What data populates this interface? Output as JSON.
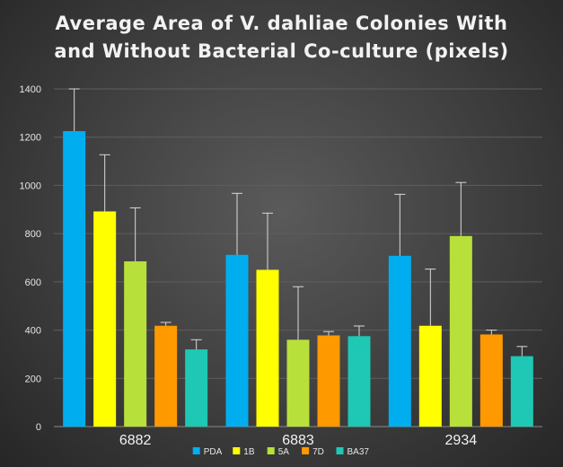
{
  "chart_data": {
    "type": "bar",
    "title_lines": [
      "Average Area of V. dahliae Colonies With",
      "and Without Bacterial Co-culture (pixels)"
    ],
    "categories": [
      "6882",
      "6883",
      "2934"
    ],
    "series": [
      {
        "name": "PDA",
        "color": "#00aeef",
        "values": [
          1225,
          712,
          708
        ],
        "error": [
          175,
          255,
          255
        ]
      },
      {
        "name": "1B",
        "color": "#ffff00",
        "values": [
          892,
          650,
          418
        ],
        "error": [
          235,
          235,
          235
        ]
      },
      {
        "name": "5A",
        "color": "#b8e03a",
        "values": [
          685,
          360,
          790
        ],
        "error": [
          222,
          220,
          222
        ]
      },
      {
        "name": "7D",
        "color": "#ff9900",
        "values": [
          418,
          378,
          382
        ],
        "error": [
          14,
          16,
          18
        ]
      },
      {
        "name": "BA37",
        "color": "#1ec8b4",
        "values": [
          320,
          375,
          292
        ],
        "error": [
          40,
          42,
          40
        ]
      }
    ],
    "yticks": [
      0,
      200,
      400,
      600,
      800,
      1000,
      1200,
      1400
    ],
    "ylim": [
      0,
      1400
    ],
    "grid": true,
    "legend_position": "bottom",
    "xlabel": "",
    "ylabel": ""
  }
}
